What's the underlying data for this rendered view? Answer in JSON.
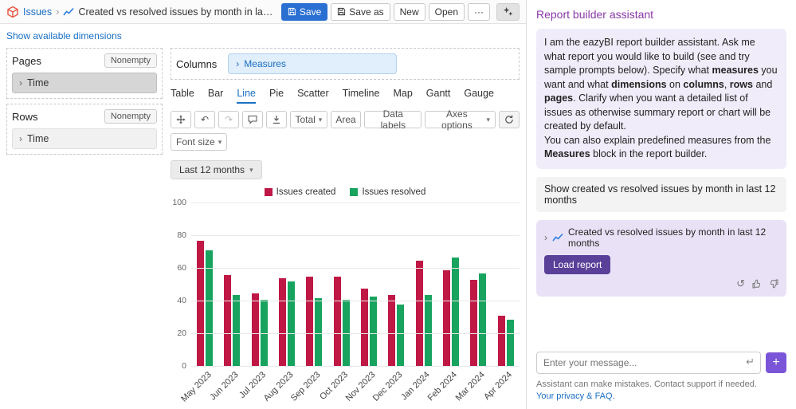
{
  "header": {
    "breadcrumb": "Issues",
    "title": "Created vs resolved issues by month in last 12 months",
    "save": "Save",
    "save_as": "Save as",
    "new": "New",
    "open": "Open",
    "more": "···"
  },
  "left": {
    "show_dimensions": "Show available dimensions",
    "pages": {
      "label": "Pages",
      "nonempty": "Nonempty",
      "item": "Time"
    },
    "rows": {
      "label": "Rows",
      "nonempty": "Nonempty",
      "item": "Time"
    },
    "columns": {
      "label": "Columns",
      "measure": "Measures"
    },
    "tabs": [
      "Table",
      "Bar",
      "Line",
      "Pie",
      "Scatter",
      "Timeline",
      "Map",
      "Gantt",
      "Gauge"
    ],
    "active_tab": "Line",
    "toolbar": {
      "total": "Total",
      "area": "Area",
      "data_labels": "Data labels",
      "axes_options": "Axes options",
      "font_size": "Font size",
      "time_filter": "Last 12 months"
    }
  },
  "chart_data": {
    "type": "bar",
    "title": "Created vs resolved issues by month in last 12 months",
    "categories": [
      "May 2023",
      "Jun 2023",
      "Jul 2023",
      "Aug 2023",
      "Sep 2023",
      "Oct 2023",
      "Nov 2023",
      "Dec 2023",
      "Jan 2024",
      "Feb 2024",
      "Mar 2024",
      "Apr 2024"
    ],
    "series": [
      {
        "name": "Issues created",
        "color": "#c01845",
        "values": [
          77,
          56,
          45,
          54,
          55,
          55,
          48,
          44,
          65,
          59,
          53,
          31
        ]
      },
      {
        "name": "Issues resolved",
        "color": "#18a35f",
        "values": [
          71,
          44,
          41,
          52,
          42,
          41,
          43,
          38,
          44,
          67,
          57,
          29
        ]
      }
    ],
    "xlabel": "",
    "ylabel": "",
    "ylim": [
      0,
      100
    ],
    "yticks": [
      0,
      20,
      40,
      60,
      80,
      100
    ],
    "grid": true,
    "legend_position": "top"
  },
  "assistant": {
    "title": "Report builder assistant",
    "intro": "I am the eazyBI report builder assistant. Ask me what report you would like to build (see and try sample prompts below). Specify what **measures** you want and what **dimensions** on **columns**, **rows** and **pages**. Clarify when you want a detailed list of issues as otherwise summary report or chart will be created by default.\nYou can also explain predefined measures from the **Measures** block in the report builder.",
    "user_message": "Show created vs resolved issues by month in last 12 months",
    "card": {
      "title": "Created vs resolved issues by month in last 12 months",
      "load": "Load report"
    },
    "input_placeholder": "Enter your message...",
    "disclaimer": "Assistant can make mistakes. Contact support if needed.",
    "privacy": "Your privacy & FAQ."
  },
  "colors": {
    "accent_blue": "#1a6fc4",
    "save_blue": "#2a6fd2",
    "assistant_purple": "#8a38a8",
    "bubble_purple": "#f1ecf9",
    "card_purple": "#e9e2f6",
    "load_button_purple": "#5a4099",
    "plus_button_purple": "#7a55d8",
    "bar_red": "#c01845",
    "bar_green": "#18a35f"
  }
}
